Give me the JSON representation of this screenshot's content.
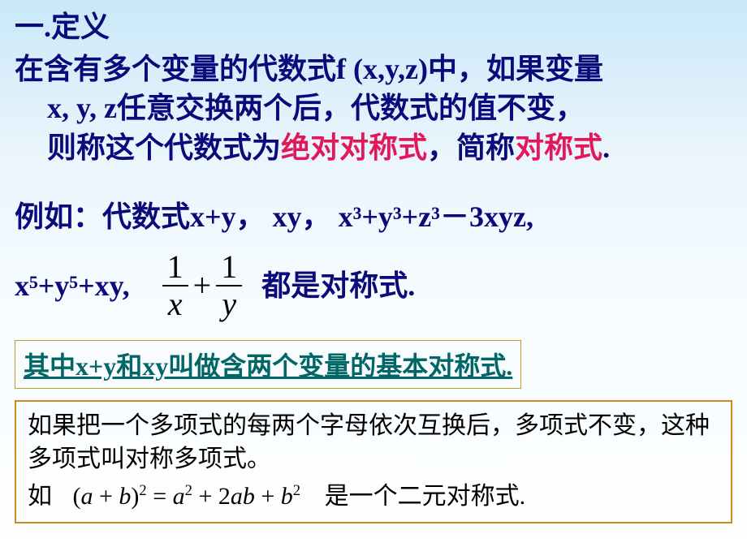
{
  "title": "一.定义",
  "definition": {
    "line1": "在含有多个变量的代数式f (x,y,z)中，如果变量",
    "line2_a": "x,   y,   z任意交换两个后，代数式的值不变，",
    "line3_a": "则称这个代数式为",
    "line3_b": "绝对对称式",
    "line3_c": "，简称",
    "line3_d": "对称式",
    "line3_e": "."
  },
  "ex": {
    "lead": "例如：代数式",
    "e1": "x+y",
    "comma1": "，   ",
    "e2": "xy",
    "comma2": "，   ",
    "e3": "x³+y³+z³－3xyz",
    "comma3": ",",
    "e4": "x⁵+y⁵+xy,",
    "frac_n1": "1",
    "frac_d1": "x",
    "frac_plus": "+",
    "frac_n2": "1",
    "frac_d2": "y",
    "tail": "都是对称式."
  },
  "underline": "其中x+y和xy叫做含两个变量的基本对称式.",
  "box": {
    "p1": "如果把一个多项式的每两个字母依次互换后，多项式不变，这种多项式叫对称多项式。",
    "p2_a": "如",
    "eq_lhs_a": "(",
    "eq_lhs_b": "a",
    "eq_lhs_c": " + ",
    "eq_lhs_d": "b",
    "eq_lhs_e": ")",
    "eq_exp1": "2",
    "eq_eq": " = ",
    "eq_r1": "a",
    "eq_exp2": "2",
    "eq_r2": " + 2",
    "eq_r3": "ab",
    "eq_r4": " + ",
    "eq_r5": "b",
    "eq_exp3": "2",
    "p2_b": "是一个二元对称式."
  },
  "colors": {
    "title": "#0a0a7a",
    "red": "#e2185b",
    "teal": "#006666",
    "box_border": "#d08820",
    "bg_top": "#c8e8f8",
    "bg_bot": "#ffffff"
  }
}
